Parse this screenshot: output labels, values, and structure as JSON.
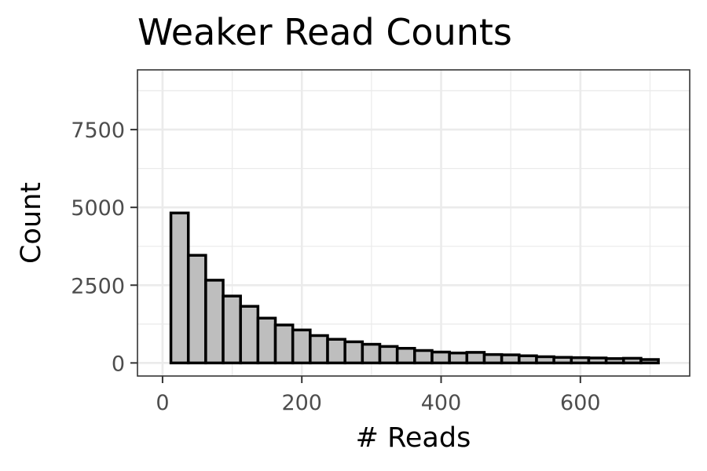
{
  "chart_data": {
    "type": "bar",
    "title": "Weaker Read Counts",
    "xlabel": "# Reads",
    "ylabel": "Count",
    "xlim": [
      -36,
      757
    ],
    "ylim": [
      -420,
      9420
    ],
    "x_ticks": [
      {
        "value": 0,
        "label": "0"
      },
      {
        "value": 200,
        "label": "200"
      },
      {
        "value": 400,
        "label": "400"
      },
      {
        "value": 600,
        "label": "600"
      }
    ],
    "y_ticks": [
      {
        "value": 0,
        "label": "0"
      },
      {
        "value": 2500,
        "label": "2500"
      },
      {
        "value": 5000,
        "label": "5000"
      },
      {
        "value": 7500,
        "label": "7500"
      }
    ],
    "bin_width": 25,
    "bins": [
      {
        "x0": 12,
        "count": 4820
      },
      {
        "x0": 37,
        "count": 3460
      },
      {
        "x0": 62,
        "count": 2660
      },
      {
        "x0": 87,
        "count": 2150
      },
      {
        "x0": 112,
        "count": 1820
      },
      {
        "x0": 137,
        "count": 1440
      },
      {
        "x0": 162,
        "count": 1220
      },
      {
        "x0": 187,
        "count": 1060
      },
      {
        "x0": 212,
        "count": 880
      },
      {
        "x0": 237,
        "count": 760
      },
      {
        "x0": 262,
        "count": 680
      },
      {
        "x0": 287,
        "count": 600
      },
      {
        "x0": 312,
        "count": 530
      },
      {
        "x0": 337,
        "count": 470
      },
      {
        "x0": 362,
        "count": 400
      },
      {
        "x0": 387,
        "count": 350
      },
      {
        "x0": 412,
        "count": 320
      },
      {
        "x0": 437,
        "count": 340
      },
      {
        "x0": 462,
        "count": 270
      },
      {
        "x0": 487,
        "count": 260
      },
      {
        "x0": 512,
        "count": 230
      },
      {
        "x0": 537,
        "count": 200
      },
      {
        "x0": 562,
        "count": 180
      },
      {
        "x0": 587,
        "count": 170
      },
      {
        "x0": 612,
        "count": 160
      },
      {
        "x0": 637,
        "count": 140
      },
      {
        "x0": 662,
        "count": 150
      },
      {
        "x0": 687,
        "count": 110
      }
    ],
    "bar_fill": "#bebebe",
    "bar_stroke": "#000000",
    "panel_border": "#333333",
    "grid": true,
    "grid_color": "#ebebeb",
    "legend": "none"
  }
}
